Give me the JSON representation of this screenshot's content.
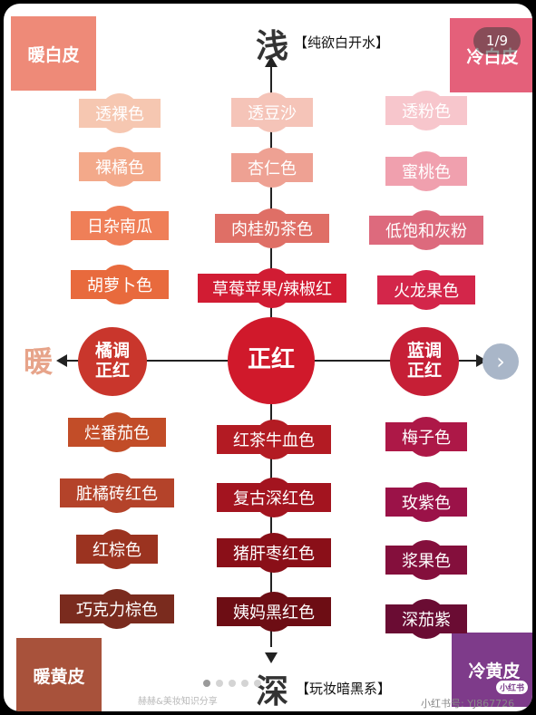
{
  "corners": {
    "top_left": {
      "label": "暖白皮",
      "color": "#ee8a78"
    },
    "top_right": {
      "label": "冷白皮",
      "color": "#e4607a"
    },
    "bottom_left": {
      "label": "暖黄皮",
      "color": "#a8523b"
    },
    "bottom_right": {
      "label": "冷黄皮",
      "color": "#7e3b8a",
      "badge": "小红书"
    }
  },
  "axis": {
    "top_char": "浅",
    "top_tag": "【纯欲白开水】",
    "bottom_char": "深",
    "bottom_tag": "【玩妆暗黑系】",
    "left_side_char": "暖"
  },
  "center": {
    "main": "正红",
    "left": [
      "橘调",
      "正红"
    ],
    "right": [
      "蓝调",
      "正红"
    ]
  },
  "columns": {
    "left_top": [
      {
        "label": "透裸色",
        "color": "#f6c7b1"
      },
      {
        "label": "裸橘色",
        "color": "#f3a98a"
      },
      {
        "label": "日杂南瓜",
        "color": "#ef7f58"
      },
      {
        "label": "胡萝卜色",
        "color": "#e86a3d"
      }
    ],
    "middle_top": [
      {
        "label": "透豆沙",
        "color": "#f5c4b8"
      },
      {
        "label": "杏仁色",
        "color": "#eea193"
      },
      {
        "label": "肉桂奶茶色",
        "color": "#df6f66"
      },
      {
        "label": "草莓苹果/辣椒红",
        "color": "#d11c33"
      }
    ],
    "right_top": [
      {
        "label": "透粉色",
        "color": "#f7c6cc"
      },
      {
        "label": "蜜桃色",
        "color": "#f0a0ae"
      },
      {
        "label": "低饱和灰粉",
        "color": "#dd6a7d"
      },
      {
        "label": "火龙果色",
        "color": "#d3264a"
      }
    ],
    "left_bottom": [
      {
        "label": "烂番茄色",
        "color": "#c24d28"
      },
      {
        "label": "脏橘砖红色",
        "color": "#b4432a"
      },
      {
        "label": "红棕色",
        "color": "#9b3320"
      },
      {
        "label": "巧克力棕色",
        "color": "#7a2b1e"
      }
    ],
    "middle_bottom": [
      {
        "label": "红茶牛血色",
        "color": "#b31b23"
      },
      {
        "label": "复古深红色",
        "color": "#a3141f"
      },
      {
        "label": "猪肝枣红色",
        "color": "#8a0f18"
      },
      {
        "label": "姨妈黑红色",
        "color": "#6d0d14"
      }
    ],
    "right_bottom": [
      {
        "label": "梅子色",
        "color": "#ad1847"
      },
      {
        "label": "玫紫色",
        "color": "#9b1248"
      },
      {
        "label": "浆果色",
        "color": "#840f3c"
      },
      {
        "label": "深茄紫",
        "color": "#6a0c33"
      }
    ]
  },
  "carousel": {
    "counter": "1/9",
    "next_glyph": "›"
  },
  "watermark": {
    "left": "赫赫&美妆知识分享",
    "right": "小红书号: YJ867726"
  }
}
